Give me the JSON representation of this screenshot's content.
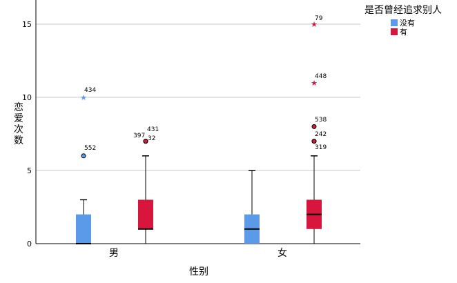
{
  "chart_data": {
    "type": "boxplot",
    "xlabel": "性别",
    "ylabel": "恋爱次数",
    "ylim": [
      0,
      16.5
    ],
    "yticks": [
      0,
      5,
      10,
      15
    ],
    "categories": [
      "男",
      "女"
    ],
    "legend": {
      "title": "是否曾经追求别人",
      "position": "top-right",
      "entries": [
        {
          "name": "没有",
          "color": "#5a9ae8"
        },
        {
          "name": "有",
          "color": "#d8153c"
        }
      ]
    },
    "boxes": [
      {
        "category": "男",
        "group": "没有",
        "whisker_low": 0,
        "q1": 0,
        "median": 0,
        "q3": 2,
        "whisker_high": 3,
        "outliers": [
          {
            "id": "552",
            "value": 6,
            "kind": "circle"
          },
          {
            "id": "434",
            "value": 10,
            "kind": "star"
          }
        ]
      },
      {
        "category": "男",
        "group": "有",
        "whisker_low": 0,
        "q1": 1,
        "median": 1,
        "q3": 3,
        "whisker_high": 6,
        "outliers": [
          {
            "id": "397",
            "value": 7,
            "kind": "circle"
          },
          {
            "id": "431",
            "value": 7,
            "kind": "circle"
          },
          {
            "id": "32",
            "value": 7,
            "kind": "circle"
          }
        ]
      },
      {
        "category": "女",
        "group": "没有",
        "whisker_low": 0,
        "q1": 0,
        "median": 1,
        "q3": 2,
        "whisker_high": 5,
        "outliers": []
      },
      {
        "category": "女",
        "group": "有",
        "whisker_low": 0,
        "q1": 1,
        "median": 2,
        "q3": 3,
        "whisker_high": 6,
        "outliers": [
          {
            "id": "319",
            "value": 7,
            "kind": "circle"
          },
          {
            "id": "242",
            "value": 7,
            "kind": "circle"
          },
          {
            "id": "538",
            "value": 8,
            "kind": "circle"
          },
          {
            "id": "448",
            "value": 11,
            "kind": "star"
          },
          {
            "id": "79",
            "value": 15,
            "kind": "star"
          }
        ]
      }
    ]
  }
}
